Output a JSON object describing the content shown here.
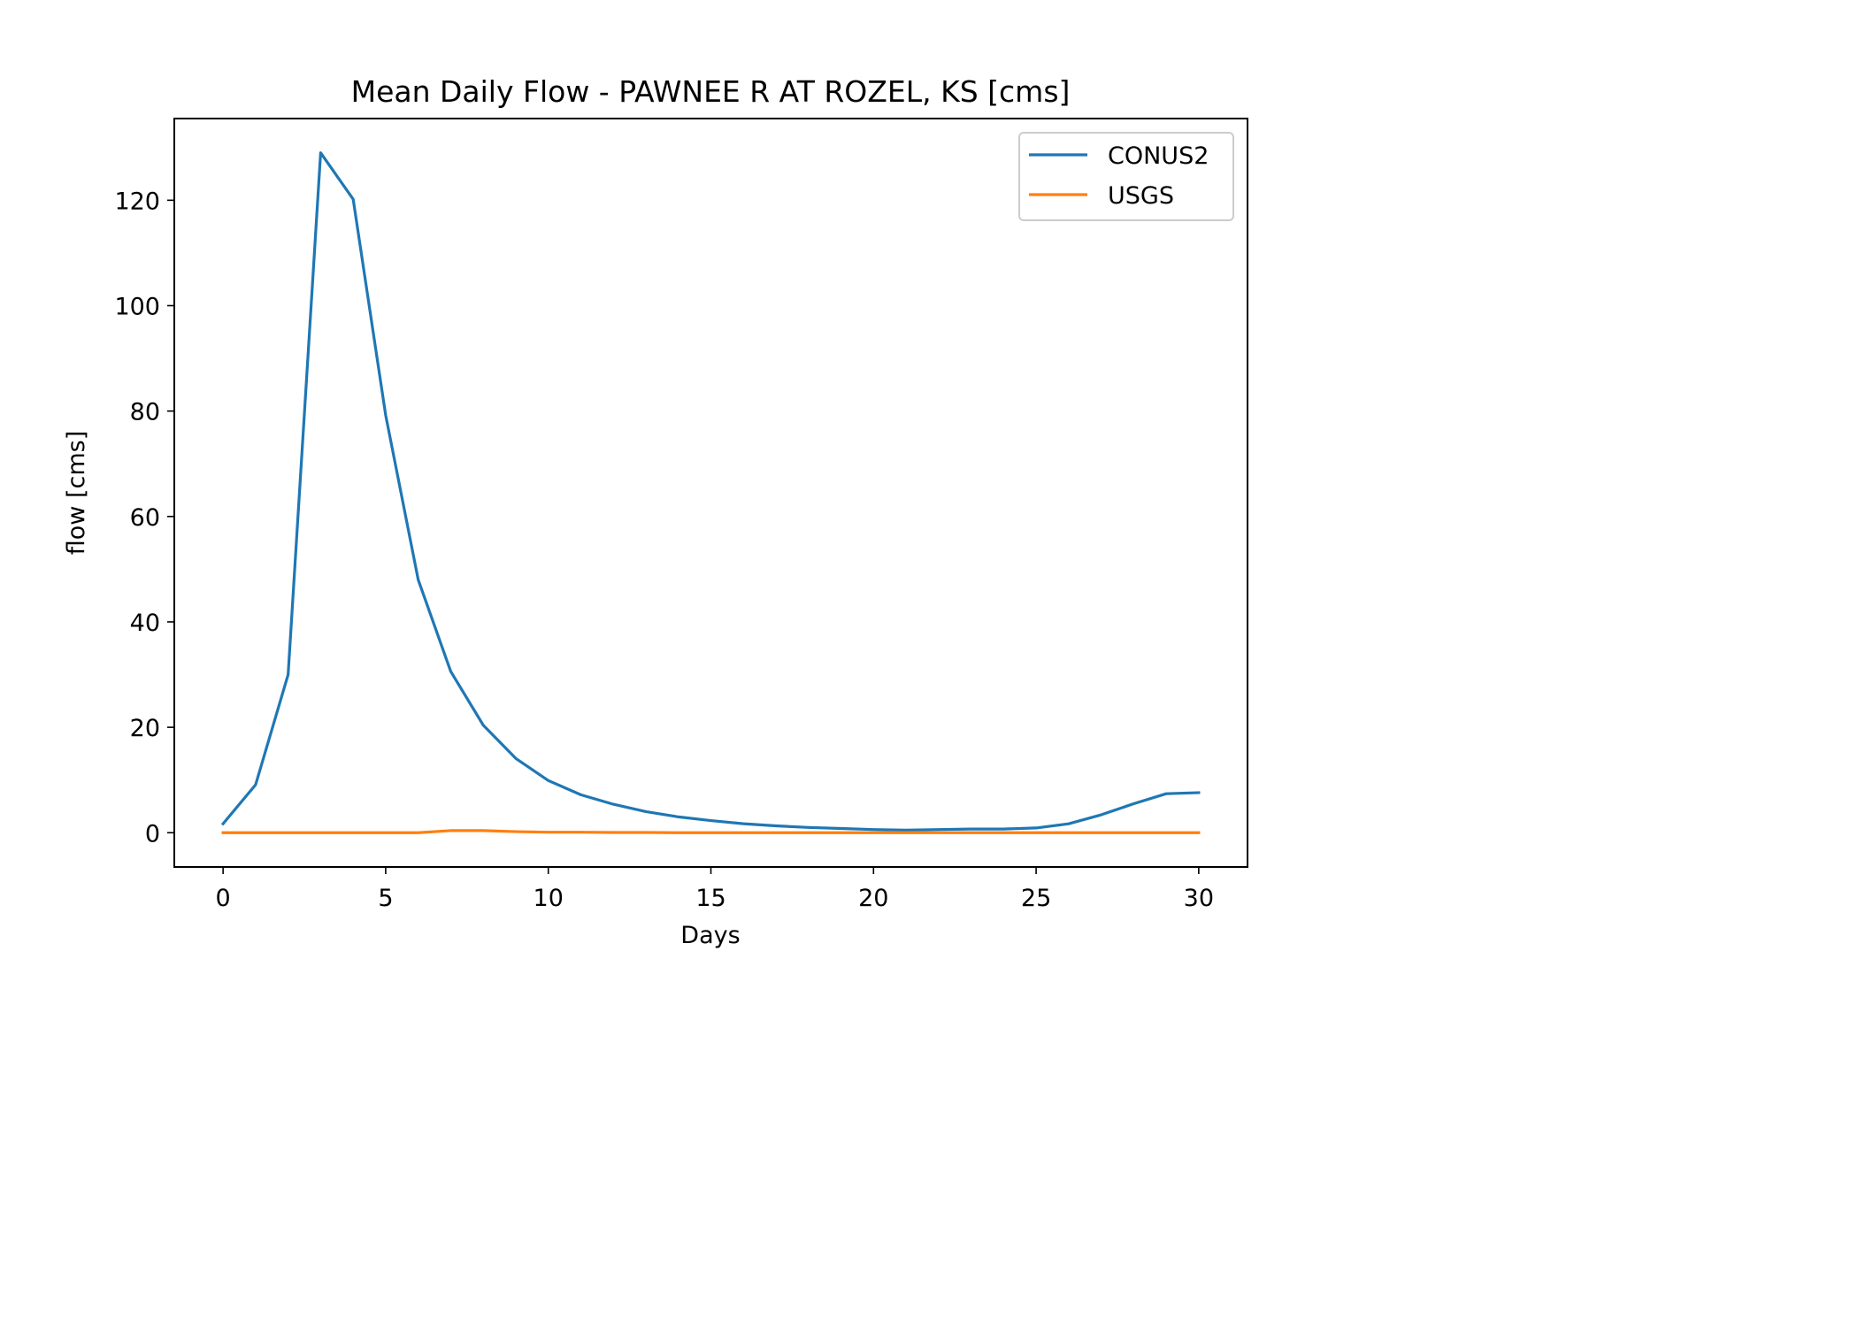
{
  "chart_data": {
    "type": "line",
    "title": "Mean Daily Flow - PAWNEE R AT ROZEL, KS [cms]",
    "xlabel": "Days",
    "ylabel": "flow [cms]",
    "xlim": [
      -1.5,
      31.5
    ],
    "ylim": [
      -6.5,
      135.5
    ],
    "xticks": [
      0,
      5,
      10,
      15,
      20,
      25,
      30
    ],
    "yticks": [
      0,
      20,
      40,
      60,
      80,
      100,
      120
    ],
    "grid": false,
    "legend_position": "upper right",
    "x": [
      0,
      1,
      2,
      3,
      4,
      5,
      6,
      7,
      8,
      9,
      10,
      11,
      12,
      13,
      14,
      15,
      16,
      17,
      18,
      19,
      20,
      21,
      22,
      23,
      24,
      25,
      26,
      27,
      28,
      29,
      30
    ],
    "series": [
      {
        "name": "CONUS2",
        "color": "#1f77b4",
        "values": [
          1.7,
          9.1,
          30.0,
          129.0,
          120.2,
          79.2,
          48.0,
          30.6,
          20.4,
          14.1,
          9.9,
          7.2,
          5.4,
          4.0,
          3.0,
          2.3,
          1.7,
          1.3,
          1.0,
          0.8,
          0.6,
          0.5,
          0.6,
          0.7,
          0.7,
          0.9,
          1.7,
          3.4,
          5.5,
          7.4,
          7.6
        ]
      },
      {
        "name": "USGS",
        "color": "#ff7f0e",
        "values": [
          0.0,
          0.0,
          0.0,
          0.0,
          0.0,
          0.0,
          0.0,
          0.4,
          0.4,
          0.2,
          0.1,
          0.1,
          0.05,
          0.05,
          0.0,
          0.0,
          0.0,
          0.0,
          0.0,
          0.0,
          0.0,
          0.0,
          0.0,
          0.0,
          0.0,
          0.0,
          0.0,
          0.0,
          0.0,
          0.0,
          0.0
        ]
      }
    ]
  }
}
